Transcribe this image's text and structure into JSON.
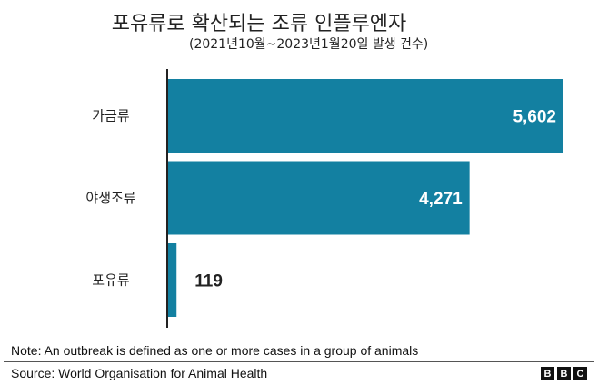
{
  "chart_data": {
    "type": "bar",
    "orientation": "horizontal",
    "title": "포유류로 확산되는 조류 인플루엔자",
    "subtitle": "(2021년10월~2023년1월20일 발생 건수)",
    "categories": [
      "가금류",
      "야생조류",
      "포유류"
    ],
    "values": [
      5602,
      4271,
      119
    ],
    "value_labels": [
      "5,602",
      "4,271",
      "119"
    ],
    "xlim": [
      0,
      5602
    ],
    "grid": false,
    "color": "#1380a1"
  },
  "footer": {
    "note": "Note: An outbreak is defined as one or more cases in a group of animals",
    "source": "Source: World Organisation for Animal Health",
    "logo": [
      "B",
      "B",
      "C"
    ]
  }
}
